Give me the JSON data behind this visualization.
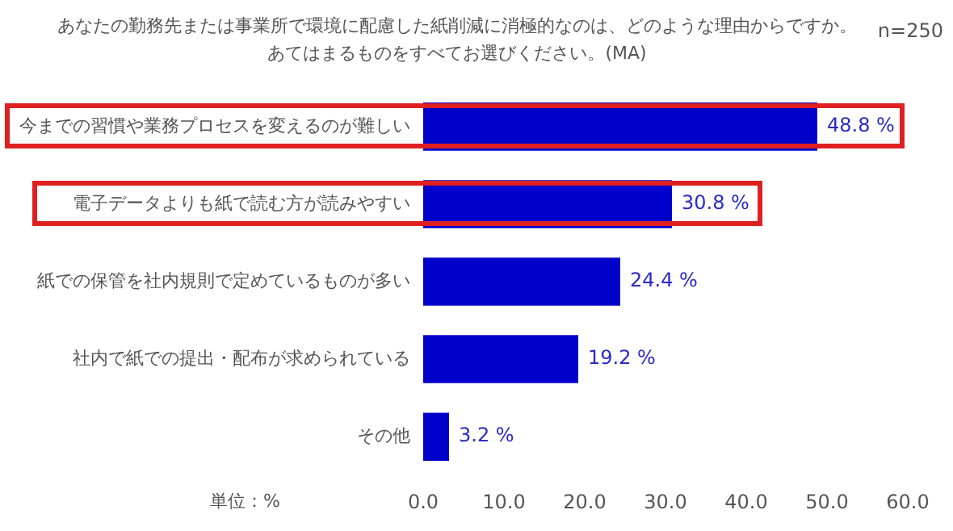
{
  "chart_data": {
    "type": "bar",
    "orientation": "horizontal",
    "title": "あなたの勤務先または事業所で環境に配慮した紙削減に消極的なのは、どのような理由からですか。",
    "subtitle": "あてはまるものをすべてお選びください。(MA)",
    "categories": [
      "今までの習慣や業務プロセスを変えるのが難しい",
      "電子データよりも紙で読む方が読みやすい",
      "紙での保管を社内規則で定めているものが多い",
      "社内で紙での提出・配布が求められている",
      "その他"
    ],
    "values": [
      48.8,
      30.8,
      24.4,
      19.2,
      3.2
    ],
    "color": "#0000cc",
    "value_labels": [
      "48.8 %",
      "30.8 %",
      "24.4 %",
      "19.2 %",
      "3.2 %"
    ],
    "xlim": [
      0,
      60
    ],
    "xticks": [
      {
        "value": 0,
        "label": "0.0"
      },
      {
        "value": 10,
        "label": "10.0"
      },
      {
        "value": 20,
        "label": "20.0"
      },
      {
        "value": 30,
        "label": "30.0"
      },
      {
        "value": 40,
        "label": "40.0"
      },
      {
        "value": 50,
        "label": "50.0"
      },
      {
        "value": 60,
        "label": "60.0"
      }
    ],
    "annotations": [
      "n=250",
      "単位：%"
    ],
    "grid": false,
    "legend": false
  }
}
